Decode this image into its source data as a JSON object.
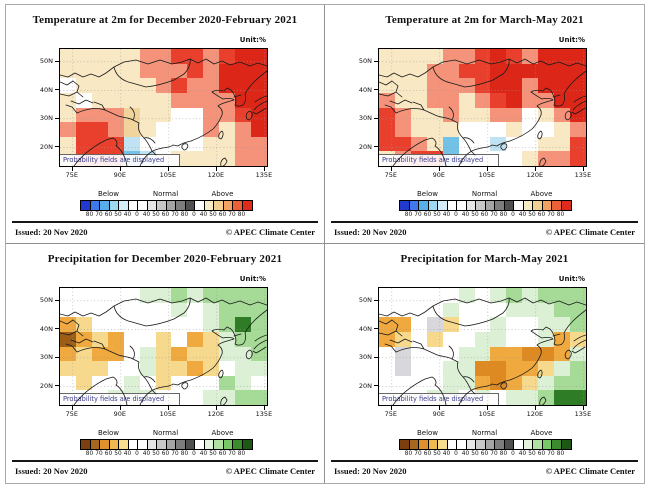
{
  "shared": {
    "unit_label": "Unit:%",
    "probability_note": "Probability fields are displayed",
    "issued": "Issued: 20 Nov 2020",
    "credit": "© APEC Climate Center",
    "lat_tick_labels": [
      "50N",
      "40N",
      "30N",
      "20N"
    ],
    "lon_tick_labels": [
      "75E",
      "90E",
      "105E",
      "120E",
      "135E"
    ],
    "colorbar": {
      "group_labels": [
        "Below",
        "Normal",
        "Above"
      ],
      "edge_numbers": [
        "80",
        "70",
        "60",
        "50",
        "40",
        "0",
        "40",
        "50",
        "60",
        "70",
        "80",
        "0",
        "40",
        "50",
        "60",
        "70",
        "80"
      ]
    }
  },
  "palettes": {
    "temperature": {
      "below": [
        "#2239CE",
        "#3E78EA",
        "#58AEE9",
        "#9ED7F1",
        "#D4EDF9",
        "#FFFFFF"
      ],
      "normal": [
        "#FFFFFF",
        "#E6E6E6",
        "#C8C8C8",
        "#A5A5A5",
        "#7D7D7D",
        "#4F4F4F"
      ],
      "above": [
        "#FFFFFF",
        "#F8ECC5",
        "#F3CF92",
        "#F2A361",
        "#EC5F38",
        "#DF2B1B"
      ]
    },
    "precipitation": {
      "below": [
        "#7D3F0F",
        "#A8671E",
        "#DE922E",
        "#EFB94F",
        "#F7DE8F",
        "#FFFFFF"
      ],
      "normal": [
        "#FFFFFF",
        "#E6E6E6",
        "#C8C8C8",
        "#A5A5A5",
        "#7D7D7D",
        "#4F4F4F"
      ],
      "above": [
        "#FFFFFF",
        "#E3F3DC",
        "#B2E2A3",
        "#78C868",
        "#3C8B2F",
        "#1D5915"
      ]
    }
  },
  "cell_colors": {
    "w": "#FFFFFF",
    "c": "#F8E8C4",
    "t": "#F1D49B",
    "s": "#F4937A",
    "r": "#E8402C",
    "R": "#DC2718",
    "lb": "#BFE3F3",
    "b": "#72C2E8",
    "y": "#F6D98C",
    "o": "#EFA93F",
    "O": "#DE8A22",
    "B": "#9C5E17",
    "pg": "#DCF0D5",
    "g": "#A5DB96",
    "dg": "#2E7C26",
    "gy": "#D8D8DC"
  },
  "panels": [
    {
      "title": "Temperature at 2m for December 2020-February 2021",
      "palette": "temperature",
      "grid": [
        "c c c c c s s r r s r R R",
        "c c c c c s s s r s R R R",
        "w c c c c c s r s s R R R",
        "c w c c c c c s s s s R R",
        "c s s s t c c w w s s r R",
        "s r r s t c w w w s c s R",
        "c r r r lb w w w w c c s s",
        "c r r r b lb w c c c c s s"
      ]
    },
    {
      "title": "Temperature at 2m for March-May 2021",
      "palette": "temperature",
      "grid": [
        "c c c c s s r R r s R R R",
        "c c c s s r r R R R R R R",
        "c c c s s s r R R s R R R",
        "s c c s s c s r R s s R R",
        "r s c c s c c s s w c s R",
        "r s c c c w w w c w w c s",
        "r r s c b w w lb w w c c r",
        "c s r r b w w w w c s s r"
      ]
    },
    {
      "title": "Precipitation for December 2020-February 2021",
      "palette": "precipitation",
      "grid": [
        "w w w w w pg pg g pg g g g g",
        "w w w w w w w pg w pg g g g",
        "o y w w w w w w w pg g dg g",
        "B o y o w w y w o y pg g g",
        "o y o o w pg y o y y pg pg g",
        "y y y w w pg y y o y w pg pg",
        "w y w w pg w y w w w g pg w",
        "w w w pg pg pg w w w pg pg g g"
      ]
    },
    {
      "title": "Precipitation for March-May 2021",
      "palette": "precipitation",
      "grid": [
        "w w w w w pg w pg g pg g g g",
        "w w w w pg w w w pg pg pg g g",
        "o o w gy y w w pg w w pg pg g",
        "o y w y w w pg pg w w pg o y",
        "w gy w w w pg pg o o O O o pg",
        "w gy w w pg pg O O o o y pg g",
        "w w w w pg pg o O o y pg g g",
        "w w w pg pg w pg w pg pg g dg dg"
      ]
    }
  ]
}
